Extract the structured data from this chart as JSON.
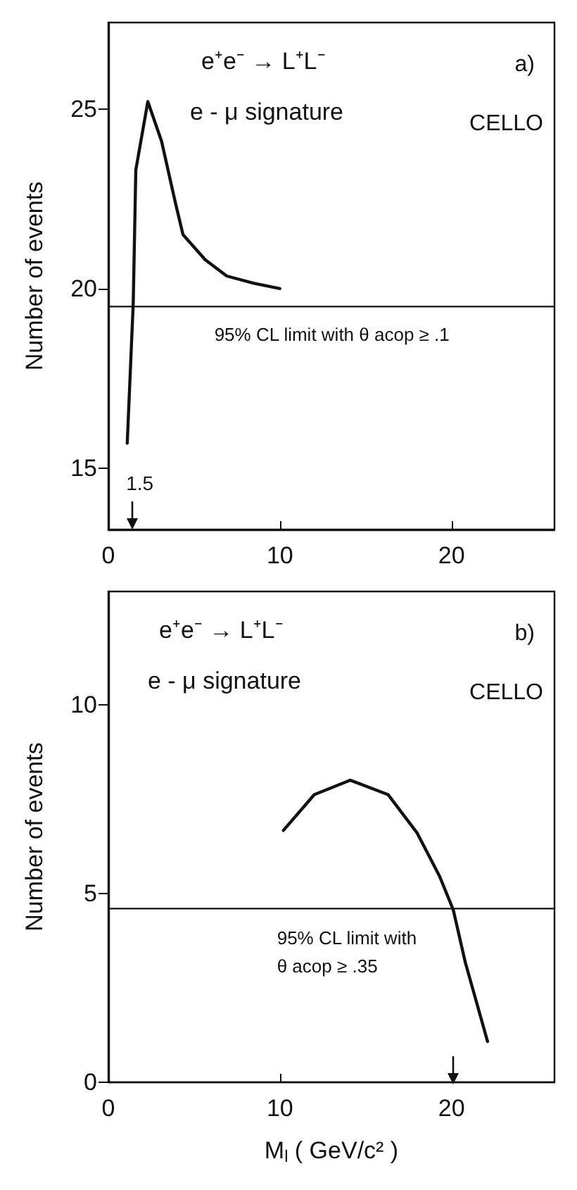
{
  "chart_data": [
    {
      "type": "line",
      "title": "e⁺e⁻ → L⁺L⁻",
      "subtitle": "e - μ signature",
      "ylabel": "Number of events",
      "annotations": [
        "a)",
        "CELLO",
        "1.5"
      ],
      "x": [
        1.1,
        1.45,
        1.6,
        2.3,
        3.1,
        3.9,
        4.35,
        5.65,
        6.9,
        8.45,
        10
      ],
      "series": [
        {
          "color": "#111111",
          "values": [
            15.7,
            19.6,
            23.3,
            25.2,
            24.1,
            22.4,
            21.5,
            20.8,
            20.35,
            20.15,
            20.0
          ]
        }
      ],
      "xlim": [
        0,
        26
      ],
      "xticks": [
        0,
        10,
        20
      ],
      "ylim": [
        13.3,
        27.4
      ],
      "yticks": [
        15,
        20,
        25
      ],
      "grid": false,
      "marker": "none",
      "line_style": "solid",
      "ref_lines": [
        {
          "axis": "y",
          "value": 19.5,
          "label": "95% CL limit with θ acop ≥ .1"
        }
      ]
    },
    {
      "type": "line",
      "title": "e⁺e⁻ → L⁺L⁻",
      "subtitle": "e - μ signature",
      "xlabel": "M$_{l}$ ( GeV/c² )",
      "ylabel": "Number of events",
      "annotations": [
        "b)",
        "CELLO"
      ],
      "x": [
        10.2,
        12.0,
        14.1,
        16.3,
        18.0,
        19.3,
        20.1,
        20.8,
        22.1
      ],
      "series": [
        {
          "color": "#111111",
          "values": [
            6.67,
            7.62,
            8.0,
            7.62,
            6.6,
            5.46,
            4.57,
            3.18,
            1.08
          ]
        }
      ],
      "xlim": [
        0,
        26
      ],
      "xticks": [
        0,
        10,
        20
      ],
      "ylim": [
        0,
        13
      ],
      "yticks": [
        0,
        5,
        10
      ],
      "grid": false,
      "marker": "none",
      "line_style": "solid",
      "ref_lines": [
        {
          "axis": "y",
          "value": 4.6,
          "label": "95% CL limit with\nθ acop ≥ .35"
        }
      ]
    }
  ]
}
